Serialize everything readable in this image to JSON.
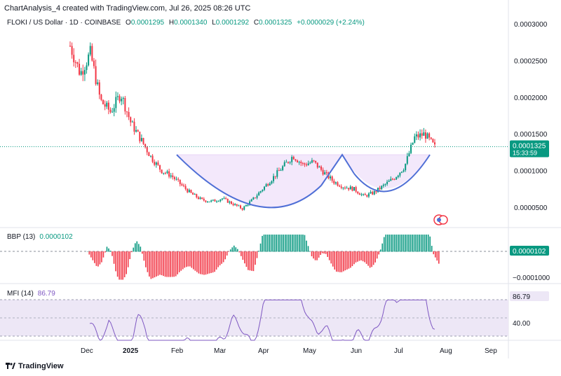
{
  "header": {
    "title": "ChartAnalysis_4 created with TradingView.com, Jul 26, 2025 08:26 UTC"
  },
  "legend": {
    "symbol": "FLOKI / US Dollar · 1D · COINBASE",
    "open_label": "O",
    "open": "0.0001295",
    "high_label": "H",
    "high": "0.0001340",
    "low_label": "L",
    "low": "0.0001292",
    "close_label": "C",
    "close": "0.0001325",
    "change": "+0.0000029 (+2.24%)"
  },
  "price_axis": {
    "ticks": [
      "0.0003000",
      "0.0002500",
      "0.0002000",
      "0.0001500",
      "0.0001000",
      "0.0000500"
    ],
    "last_price": "0.0001325",
    "countdown": "15:33:59"
  },
  "bbp": {
    "label": "BBP (13)",
    "value": "0.0000102",
    "axis_value": "0.0000102",
    "axis_tick": "−0.0001000"
  },
  "mfi": {
    "label": "MFI (14)",
    "value": "86.79",
    "axis_value": "86.79",
    "axis_tick": "40.00"
  },
  "time_axis": {
    "ticks": [
      "Dec",
      "2025",
      "Feb",
      "Mar",
      "Apr",
      "May",
      "Jun",
      "Jul",
      "Aug",
      "Sep"
    ]
  },
  "footer": {
    "brand": "TradingView"
  },
  "colors": {
    "up": "#089981",
    "down": "#f23645",
    "pattern": "#4f6fd6",
    "pattern_fill": "#f3e8fb",
    "mfi_line": "#7e57c2",
    "mfi_band": "#ede7f6"
  },
  "chart_data": {
    "type": "candlestick",
    "title": "FLOKI / US Dollar · 1D · COINBASE",
    "x": [
      "2024-11-20",
      "2024-12-01",
      "2025-01-01",
      "2025-02-01",
      "2025-03-01",
      "2025-04-01",
      "2025-05-01",
      "2025-06-01",
      "2025-07-01",
      "2025-07-26"
    ],
    "close_path": [
      0.00027,
      0.000232,
      0.00026,
      0.000195,
      0.00018,
      0.000205,
      0.000165,
      0.000142,
      0.000118,
      0.0001,
      9.3e-05,
      8e-05,
      6.8e-05,
      6e-05,
      5.8e-05,
      6.2e-05,
      5.5e-05,
      4.8e-05,
      6e-05,
      7.5e-05,
      9e-05,
      0.000105,
      0.00012,
      0.000108,
      0.000112,
      9.8e-05,
      8.5e-05,
      7.8e-05,
      7.5e-05,
      6.5e-05,
      7e-05,
      8e-05,
      9e-05,
      0.000105,
      0.000145,
      0.00015,
      0.000132
    ],
    "ylim": [
      3e-05,
      0.00032
    ],
    "indicators": [
      {
        "name": "BBP (13)",
        "last": 1.02e-05
      },
      {
        "name": "MFI (14)",
        "last": 86.79
      }
    ],
    "annotation": "cup and handle pattern"
  }
}
